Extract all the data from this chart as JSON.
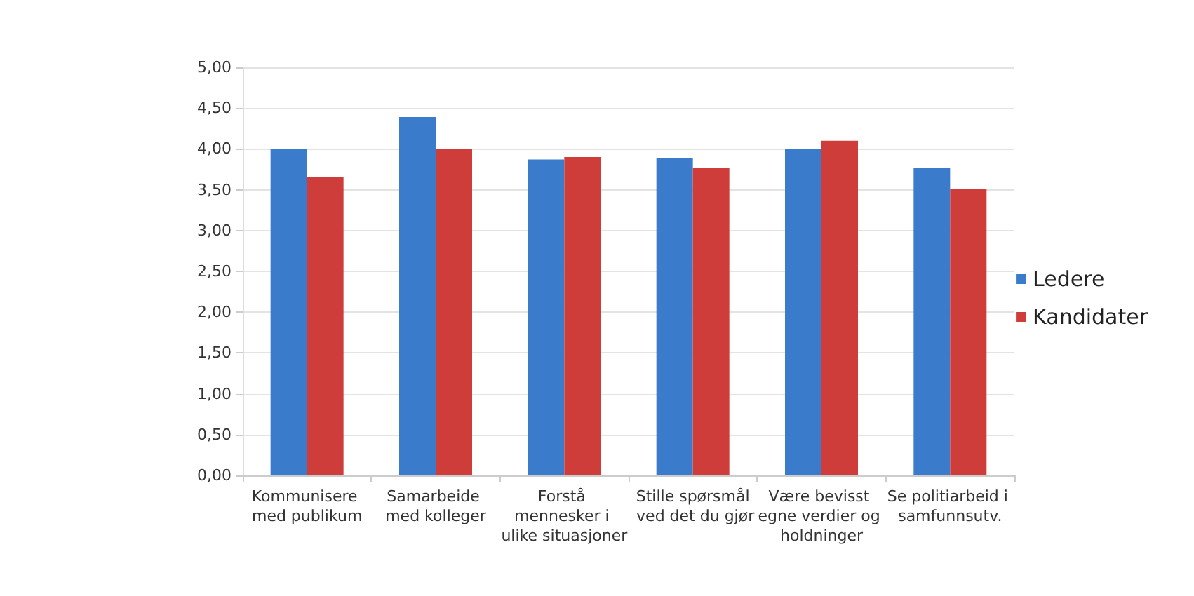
{
  "chart_data": {
    "type": "bar",
    "categories": [
      "Kommunisere med publikum",
      "Samarbeide med kolleger",
      "Forstå mennesker i ulike situasjoner",
      "Stille spørsmål ved det du gjør",
      "Være bevisst egne verdier og holdninger",
      "Se politiarbeid i samfunnsutv."
    ],
    "series": [
      {
        "name": "Ledere",
        "color": "#3a7bcc",
        "values": [
          4.0,
          4.39,
          3.87,
          3.89,
          4.0,
          3.77
        ]
      },
      {
        "name": "Kandidater",
        "color": "#cf3d3b",
        "values": [
          3.66,
          4.0,
          3.9,
          3.77,
          4.1,
          3.51
        ]
      }
    ],
    "ylim": [
      0,
      5
    ],
    "yticks": [
      {
        "value": 0,
        "label": "0,00"
      },
      {
        "value": 0.5,
        "label": "0,50"
      },
      {
        "value": 1,
        "label": "1,00"
      },
      {
        "value": 1.5,
        "label": "1,50"
      },
      {
        "value": 2,
        "label": "2,00"
      },
      {
        "value": 2.5,
        "label": "2,50"
      },
      {
        "value": 3,
        "label": "3,00"
      },
      {
        "value": 3.5,
        "label": "3,50"
      },
      {
        "value": 4,
        "label": "4,00"
      },
      {
        "value": 4.5,
        "label": "4,50"
      },
      {
        "value": 5,
        "label": "5,00"
      }
    ],
    "grid": "y",
    "legend": "right"
  }
}
